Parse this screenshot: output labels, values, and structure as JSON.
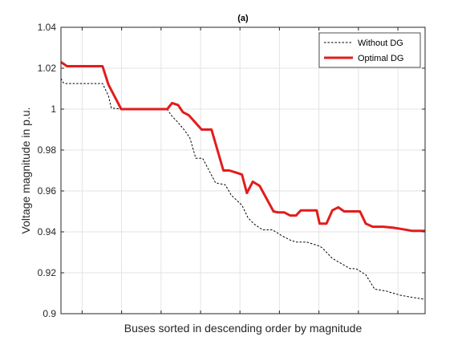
{
  "chart_data": {
    "type": "line",
    "title": "(a)",
    "xlabel": "Buses sorted in descending order by magnitude",
    "ylabel": "Voltage magnitude in p.u.",
    "ylim": [
      0.9,
      1.04
    ],
    "yticks": [
      0.9,
      0.92,
      0.94,
      0.96,
      0.98,
      1,
      1.02,
      1.04
    ],
    "ytick_labels": [
      "0.9",
      "0.92",
      "0.94",
      "0.96",
      "0.98",
      "1",
      "1.02",
      "1.04"
    ],
    "xlim": [
      1,
      33
    ],
    "x_ticks": [
      2.86,
      6.33,
      9.8,
      13.27,
      16.73,
      20.2,
      23.67,
      27.14,
      30.61
    ],
    "grid": true,
    "legend_position": "top-right",
    "series": [
      {
        "name": "Without DG",
        "color": "#000000",
        "style": "dashed",
        "x": [
          1,
          1.18,
          1.44,
          4.65,
          5.17,
          5.43,
          6.38,
          10.34,
          10.69,
          11.2,
          11.81,
          12.33,
          12.85,
          13.45,
          14.58,
          15.44,
          15.96,
          16.91,
          17.43,
          17.94,
          18.72,
          19.59,
          20.45,
          21.14,
          21.66,
          22.6,
          23.73,
          23.99,
          24.85,
          26.41,
          26.93,
          27.79,
          28.57,
          29.61,
          30.82,
          31.85,
          33
        ],
        "y": [
          1.015,
          1.013,
          1.0125,
          1.0125,
          1.0065,
          1.0005,
          1.0,
          1.0,
          0.997,
          0.994,
          0.99,
          0.986,
          0.976,
          0.976,
          0.964,
          0.963,
          0.958,
          0.953,
          0.947,
          0.944,
          0.941,
          0.941,
          0.938,
          0.936,
          0.935,
          0.935,
          0.933,
          0.932,
          0.927,
          0.922,
          0.922,
          0.919,
          0.912,
          0.911,
          0.909,
          0.908,
          0.907
        ]
      },
      {
        "name": "Optimal DG",
        "color": "#e21c1c",
        "style": "solid",
        "x": [
          1,
          1.53,
          4.65,
          5.17,
          6.29,
          10.34,
          10.77,
          11.29,
          11.72,
          12.24,
          13.36,
          14.23,
          15.27,
          15.79,
          16.39,
          16.91,
          17.34,
          17.86,
          18.46,
          19.68,
          20.11,
          20.63,
          21.14,
          21.66,
          22.08,
          23.47,
          23.73,
          24.33,
          24.85,
          25.37,
          25.89,
          27.28,
          27.79,
          28.4,
          29.35,
          30.22,
          30.82,
          31.85,
          33
        ],
        "y": [
          1.023,
          1.021,
          1.021,
          1.012,
          1.0,
          1.0,
          1.003,
          1.002,
          0.9985,
          0.997,
          0.99,
          0.99,
          0.97,
          0.97,
          0.969,
          0.968,
          0.959,
          0.9645,
          0.9625,
          0.95,
          0.9495,
          0.9495,
          0.948,
          0.948,
          0.9505,
          0.9505,
          0.944,
          0.944,
          0.9505,
          0.952,
          0.95,
          0.95,
          0.944,
          0.9425,
          0.9425,
          0.942,
          0.9415,
          0.9405,
          0.9405
        ]
      }
    ]
  }
}
